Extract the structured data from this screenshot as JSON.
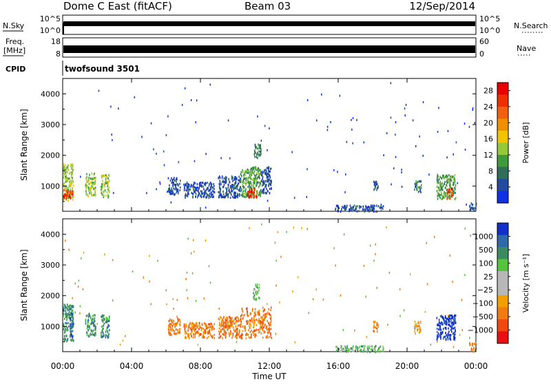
{
  "header": {
    "station": "Dome C East (fitACF)",
    "beam": "Beam 03",
    "date": "12/Sep/2014"
  },
  "strips": {
    "nsky_label": "N.Sky",
    "nsky_top": "10^5",
    "nsky_bottom": "10^0",
    "nsearch_label": "N.Search",
    "nsearch_top": "10^5",
    "nsearch_bottom": "10^0",
    "freq_label_1": "Freq.",
    "freq_label_2": "[MHz]",
    "freq_top": "18",
    "freq_bottom": "8",
    "nave_label": "Nave",
    "nave_top": "60",
    "nave_bottom": "0",
    "cpid_label": "CPID",
    "cpid_value": "twofsound 3501"
  },
  "colors": {
    "power_scale": [
      "#1030e8",
      "#244a9e",
      "#2f6f5a",
      "#3f9a3a",
      "#96c83c",
      "#f2c300",
      "#f09000",
      "#f06010",
      "#ee3000",
      "#e80000"
    ],
    "velocity_scale": [
      "#1030c8",
      "#2e6aa8",
      "#3a8a62",
      "#56c43a",
      "#b8b8b8",
      "#b8b8b8",
      "#f2a000",
      "#f07a14",
      "#ee4a10",
      "#e81010"
    ]
  },
  "chart_data": [
    {
      "type": "heatmap",
      "name": "power",
      "xlabel": "Time UT",
      "ylabel": "Slant Range [km]",
      "x_ticks": [
        "00:00",
        "04:00",
        "08:00",
        "12:00",
        "16:00",
        "20:00",
        "00:00"
      ],
      "xlim_hours": [
        0,
        24
      ],
      "ylim": [
        180,
        4500
      ],
      "y_ticks": [
        1000,
        2000,
        3000,
        4000
      ],
      "colorbar_label": "Power [dB]",
      "colorbar_ticks": [
        "4",
        "8",
        "12",
        "16",
        "20",
        "24",
        "28"
      ],
      "colorbar_range": [
        0,
        30
      ],
      "regions": [
        {
          "t": [
            0.0,
            0.6
          ],
          "r": [
            550,
            1750
          ],
          "level": 4
        },
        {
          "t": [
            0.0,
            0.6
          ],
          "r": [
            600,
            900
          ],
          "level": 8
        },
        {
          "t": [
            1.3,
            1.9
          ],
          "r": [
            700,
            1450
          ],
          "level": 4
        },
        {
          "t": [
            2.2,
            2.7
          ],
          "r": [
            650,
            1400
          ],
          "level": 4
        },
        {
          "t": [
            6.1,
            6.8
          ],
          "r": [
            750,
            1300
          ],
          "level": 1
        },
        {
          "t": [
            7.0,
            8.8
          ],
          "r": [
            650,
            1150
          ],
          "level": 1
        },
        {
          "t": [
            9.0,
            10.3
          ],
          "r": [
            650,
            1350
          ],
          "level": 1
        },
        {
          "t": [
            10.3,
            11.5
          ],
          "r": [
            650,
            1650
          ],
          "level": 3
        },
        {
          "t": [
            10.7,
            11.3
          ],
          "r": [
            650,
            950
          ],
          "level": 8
        },
        {
          "t": [
            11.1,
            11.5
          ],
          "r": [
            1900,
            2400
          ],
          "level": 2
        },
        {
          "t": [
            11.5,
            12.1
          ],
          "r": [
            800,
            1650
          ],
          "level": 1
        },
        {
          "t": [
            15.8,
            18.6
          ],
          "r": [
            200,
            400
          ],
          "level": 1
        },
        {
          "t": [
            18.0,
            18.3
          ],
          "r": [
            850,
            1200
          ],
          "level": 1
        },
        {
          "t": [
            20.4,
            20.8
          ],
          "r": [
            800,
            1200
          ],
          "level": 2
        },
        {
          "t": [
            21.7,
            22.8
          ],
          "r": [
            600,
            1400
          ],
          "level": 3
        },
        {
          "t": [
            22.3,
            22.6
          ],
          "r": [
            600,
            950
          ],
          "level": 8
        },
        {
          "t": [
            23.6,
            24.0
          ],
          "r": [
            200,
            500
          ],
          "level": 1
        }
      ]
    },
    {
      "type": "heatmap",
      "name": "velocity",
      "xlabel": "Time UT",
      "ylabel": "Slant Range [km]",
      "x_ticks": [
        "00:00",
        "04:00",
        "08:00",
        "12:00",
        "16:00",
        "20:00",
        "00:00"
      ],
      "xlim_hours": [
        0,
        24
      ],
      "ylim": [
        180,
        4500
      ],
      "y_ticks": [
        1000,
        2000,
        3000,
        4000
      ],
      "colorbar_label": "Velocity [m s⁻¹]",
      "colorbar_ticks": [
        "1000",
        "500",
        "100",
        "25",
        "−25",
        "−100",
        "−500",
        "−1000"
      ],
      "regions": [
        {
          "t": [
            0.0,
            0.6
          ],
          "r": [
            550,
            1750
          ],
          "level": 2
        },
        {
          "t": [
            0.4,
            0.6
          ],
          "r": [
            700,
            1500
          ],
          "level": 1
        },
        {
          "t": [
            1.3,
            1.9
          ],
          "r": [
            700,
            1450
          ],
          "level": 2
        },
        {
          "t": [
            2.2,
            2.7
          ],
          "r": [
            650,
            1400
          ],
          "level": 2
        },
        {
          "t": [
            6.1,
            6.8
          ],
          "r": [
            750,
            1300
          ],
          "level": 7
        },
        {
          "t": [
            7.0,
            8.8
          ],
          "r": [
            650,
            1150
          ],
          "level": 7
        },
        {
          "t": [
            9.0,
            10.3
          ],
          "r": [
            650,
            1350
          ],
          "level": 7
        },
        {
          "t": [
            10.3,
            12.1
          ],
          "r": [
            650,
            1650
          ],
          "level": 7
        },
        {
          "t": [
            11.0,
            11.4
          ],
          "r": [
            1900,
            2400
          ],
          "level": 3
        },
        {
          "t": [
            15.8,
            18.6
          ],
          "r": [
            200,
            400
          ],
          "level": 3
        },
        {
          "t": [
            18.0,
            18.3
          ],
          "r": [
            850,
            1200
          ],
          "level": 7
        },
        {
          "t": [
            20.4,
            20.8
          ],
          "r": [
            800,
            1200
          ],
          "level": 6
        },
        {
          "t": [
            21.7,
            22.8
          ],
          "r": [
            600,
            1400
          ],
          "level": 0
        },
        {
          "t": [
            23.6,
            24.0
          ],
          "r": [
            200,
            500
          ],
          "level": 7
        }
      ]
    }
  ]
}
